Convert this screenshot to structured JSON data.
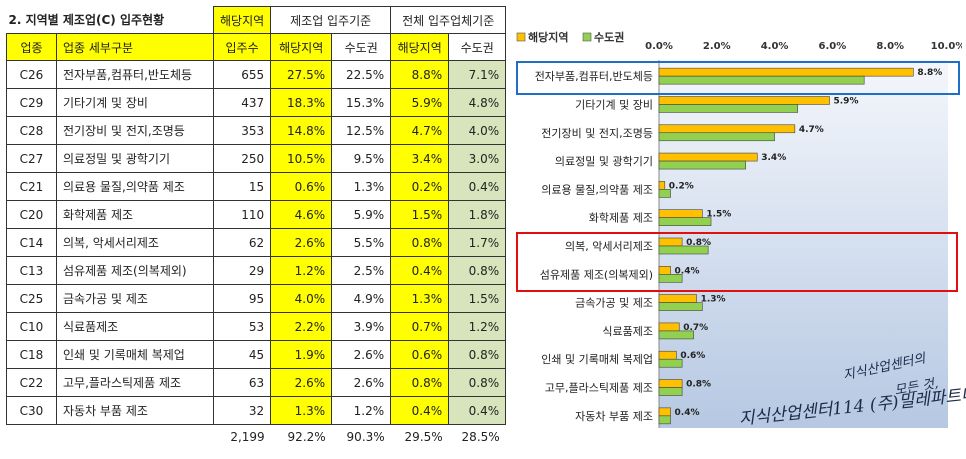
{
  "table": {
    "title": "2. 지역별 제조업(C) 입주현황",
    "group_headers": {
      "local": "해당지역",
      "mfg_basis": "제조업 입주기준",
      "all_basis": "전체 입주업체기준"
    },
    "col_headers": [
      "업종",
      "업종 세부구분",
      "입주수",
      "해당지역",
      "수도권",
      "해당지역",
      "수도권"
    ],
    "rows": [
      {
        "code": "C26",
        "name": "전자부품,컴퓨터,반도체등",
        "count": "655",
        "mfg_local": "27.5%",
        "mfg_metro": "22.5%",
        "all_local": "8.8%",
        "all_metro": "7.1%"
      },
      {
        "code": "C29",
        "name": "기타기계 및 장비",
        "count": "437",
        "mfg_local": "18.3%",
        "mfg_metro": "15.3%",
        "all_local": "5.9%",
        "all_metro": "4.8%"
      },
      {
        "code": "C28",
        "name": "전기장비 및 전지,조명등",
        "count": "353",
        "mfg_local": "14.8%",
        "mfg_metro": "12.5%",
        "all_local": "4.7%",
        "all_metro": "4.0%"
      },
      {
        "code": "C27",
        "name": "의료정밀 및 광학기기",
        "count": "250",
        "mfg_local": "10.5%",
        "mfg_metro": "9.5%",
        "all_local": "3.4%",
        "all_metro": "3.0%"
      },
      {
        "code": "C21",
        "name": "의료용 물질,의약품 제조",
        "count": "15",
        "mfg_local": "0.6%",
        "mfg_metro": "1.3%",
        "all_local": "0.2%",
        "all_metro": "0.4%"
      },
      {
        "code": "C20",
        "name": "화학제품 제조",
        "count": "110",
        "mfg_local": "4.6%",
        "mfg_metro": "5.9%",
        "all_local": "1.5%",
        "all_metro": "1.8%"
      },
      {
        "code": "C14",
        "name": "의복, 악세서리제조",
        "count": "62",
        "mfg_local": "2.6%",
        "mfg_metro": "5.5%",
        "all_local": "0.8%",
        "all_metro": "1.7%"
      },
      {
        "code": "C13",
        "name": "섬유제품 제조(의복제외)",
        "count": "29",
        "mfg_local": "1.2%",
        "mfg_metro": "2.5%",
        "all_local": "0.4%",
        "all_metro": "0.8%"
      },
      {
        "code": "C25",
        "name": "금속가공 및 제조",
        "count": "95",
        "mfg_local": "4.0%",
        "mfg_metro": "4.9%",
        "all_local": "1.3%",
        "all_metro": "1.5%"
      },
      {
        "code": "C10",
        "name": "식료품제조",
        "count": "53",
        "mfg_local": "2.2%",
        "mfg_metro": "3.9%",
        "all_local": "0.7%",
        "all_metro": "1.2%"
      },
      {
        "code": "C18",
        "name": "인쇄 및 기록매체 복제업",
        "count": "45",
        "mfg_local": "1.9%",
        "mfg_metro": "2.6%",
        "all_local": "0.6%",
        "all_metro": "0.8%"
      },
      {
        "code": "C22",
        "name": "고무,플라스틱제품 제조",
        "count": "63",
        "mfg_local": "2.6%",
        "mfg_metro": "2.6%",
        "all_local": "0.8%",
        "all_metro": "0.8%"
      },
      {
        "code": "C30",
        "name": "자동차 부품 제조",
        "count": "32",
        "mfg_local": "1.3%",
        "mfg_metro": "1.2%",
        "all_local": "0.4%",
        "all_metro": "0.4%"
      }
    ],
    "totals": {
      "count": "2,199",
      "mfg_local": "92.2%",
      "mfg_metro": "90.3%",
      "all_local": "29.5%",
      "all_metro": "28.5%"
    }
  },
  "chart_data": {
    "type": "bar",
    "orientation": "horizontal",
    "title": "",
    "categories": [
      "전자부품,컴퓨터,반도체등",
      "기타기계 및 장비",
      "전기장비 및 전지,조명등",
      "의료정밀 및 광학기기",
      "의료용 물질,의약품 제조",
      "화학제품 제조",
      "의복, 악세서리제조",
      "섬유제품 제조(의복제외)",
      "금속가공 및 제조",
      "식료품제조",
      "인쇄 및 기록매체 복제업",
      "고무,플라스틱제품 제조",
      "자동차 부품 제조"
    ],
    "series": [
      {
        "name": "해당지역",
        "color": "#ffc000",
        "values": [
          8.8,
          5.9,
          4.7,
          3.4,
          0.2,
          1.5,
          0.8,
          0.4,
          1.3,
          0.7,
          0.6,
          0.8,
          0.4
        ],
        "labels": [
          "8.8%",
          "5.9%",
          "4.7%",
          "3.4%",
          "0.2%",
          "1.5%",
          "0.8%",
          "0.4%",
          "1.3%",
          "0.7%",
          "0.6%",
          "0.8%",
          "0.4%"
        ]
      },
      {
        "name": "수도권",
        "color": "#92d050",
        "values": [
          7.1,
          4.8,
          4.0,
          3.0,
          0.4,
          1.8,
          1.7,
          0.8,
          1.5,
          1.2,
          0.8,
          0.8,
          0.4
        ]
      }
    ],
    "xlim": [
      0,
      10
    ],
    "xticks": [
      "0.0%",
      "2.0%",
      "4.0%",
      "6.0%",
      "8.0%",
      "10.0%"
    ],
    "legend_position": "top-left",
    "highlight_colors": {
      "blue": "#1f6fc5",
      "red": "#e01010"
    }
  },
  "watermark": {
    "line1": "지식산업센터의",
    "line2": "모든 것,",
    "line3": "지식산업센터114 (주)밀레파트너"
  }
}
